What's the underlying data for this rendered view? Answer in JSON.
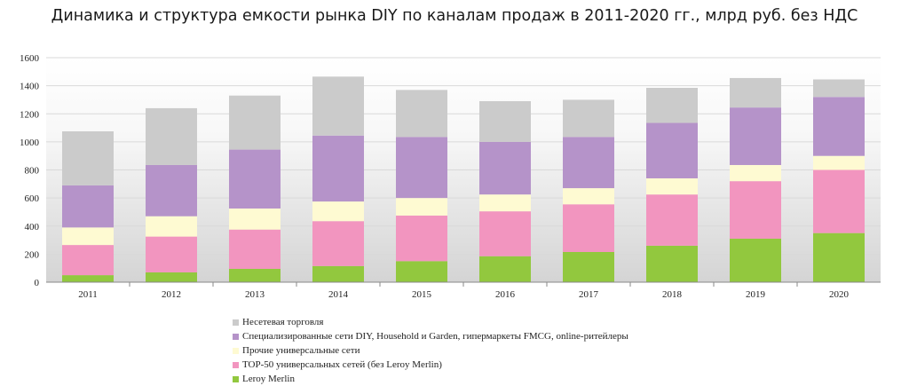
{
  "chart_data": {
    "type": "bar",
    "stacked": true,
    "title": "Динамика и структура емкости рынка DIY по каналам продаж в 2011-2020 гг., млрд руб. без НДС",
    "categories": [
      "2011",
      "2012",
      "2013",
      "2014",
      "2015",
      "2016",
      "2017",
      "2018",
      "2019",
      "2020"
    ],
    "ylim": [
      0,
      1600
    ],
    "yticks": [
      "0",
      "200",
      "400",
      "600",
      "800",
      "1000",
      "1200",
      "1400",
      "1600"
    ],
    "grid": true,
    "legend_position": "bottom",
    "series": [
      {
        "name": "Leroy Merlin",
        "color": "#92c83e",
        "values": [
          50,
          70,
          95,
          115,
          150,
          185,
          215,
          260,
          310,
          350
        ]
      },
      {
        "name": "TOP-50 универсальных сетей (без Leroy Merlin)",
        "color": "#f295bf",
        "values": [
          215,
          255,
          280,
          320,
          325,
          320,
          340,
          365,
          410,
          450
        ]
      },
      {
        "name": "Прочие универсальные сети",
        "color": "#fefad2",
        "values": [
          125,
          145,
          150,
          140,
          125,
          120,
          115,
          115,
          115,
          100
        ]
      },
      {
        "name": "Специализированные сети DIY, Household и Garden, гипермаркеты FMCG, online-ритейлеры",
        "color": "#b593c9",
        "values": [
          300,
          365,
          420,
          470,
          435,
          375,
          365,
          395,
          410,
          420
        ]
      },
      {
        "name": "Несетевая торговля",
        "color": "#cbcbcb",
        "values": [
          385,
          405,
          385,
          420,
          335,
          290,
          265,
          250,
          210,
          125
        ]
      }
    ],
    "legend_order": [
      "Несетевая торговля",
      "Специализированные сети DIY, Household и Garden, гипермаркеты FMCG, online-ритейлеры",
      "Прочие универсальные сети",
      "TOP-50 универсальных сетей (без Leroy Merlin)",
      "Leroy Merlin"
    ]
  }
}
